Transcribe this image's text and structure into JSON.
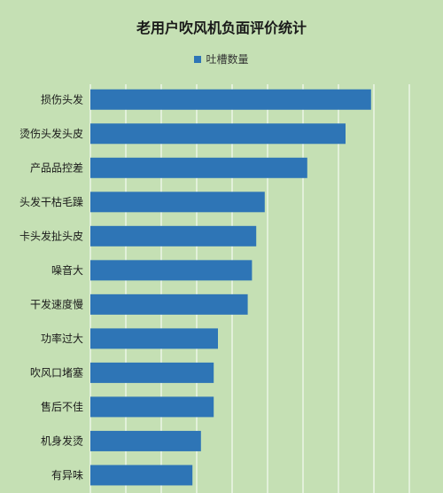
{
  "chart_data": {
    "type": "bar",
    "orientation": "horizontal",
    "title": "老用户吹风机负面评价统计",
    "categories": [
      "损伤头发",
      "烫伤头发头皮",
      "产品品控差",
      "头发干枯毛躁",
      "卡头发扯头皮",
      "噪音大",
      "干发速度慢",
      "功率过大",
      "吹风口堵塞",
      "售后不佳",
      "机身发烫",
      "有异味"
    ],
    "series": [
      {
        "name": "吐槽数量",
        "values": [
          66,
          60,
          51,
          41,
          39,
          38,
          37,
          30,
          29,
          29,
          26,
          24
        ]
      }
    ],
    "xlim": [
      0,
      75
    ],
    "grid": true,
    "legend_position": "top",
    "colors": {
      "bar": "#2e75b6",
      "background": "#c5e0b4",
      "grid": "#ffffff"
    }
  }
}
